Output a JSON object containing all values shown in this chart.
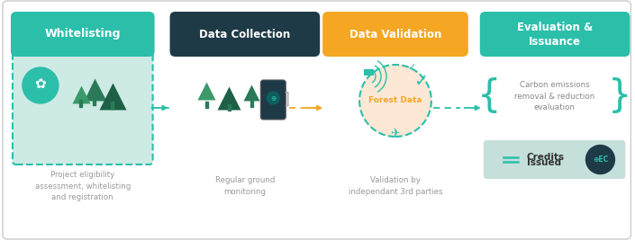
{
  "bg": "#ffffff",
  "border_color": "#cccccc",
  "teal": "#2bbfaa",
  "dark_teal": "#1e3a47",
  "orange": "#f5a623",
  "light_teal_bg": "#ceeae4",
  "credits_bg": "#c5e0da",
  "tree_dark": "#2a7a5a",
  "tree_mid": "#3a9a6a",
  "gray_text": "#999999",
  "dark_text": "#444444",
  "step1_label": "Whitelisting",
  "step2_label": "Data Collection",
  "step3_label": "Data Validation",
  "step4_label": "Evaluation &\nIssuance",
  "step1_caption": "Project eligibility\nassessment, whitelisting\nand registration",
  "step2_caption": "Regular ground\nmonitoring",
  "step3_caption": "Validation by\nindependant 3rd parties",
  "carbon_text": "Carbon emissions\nremoval & reduction\nevaluation",
  "credits_text1": "Credits",
  "credits_text2": "Issued"
}
